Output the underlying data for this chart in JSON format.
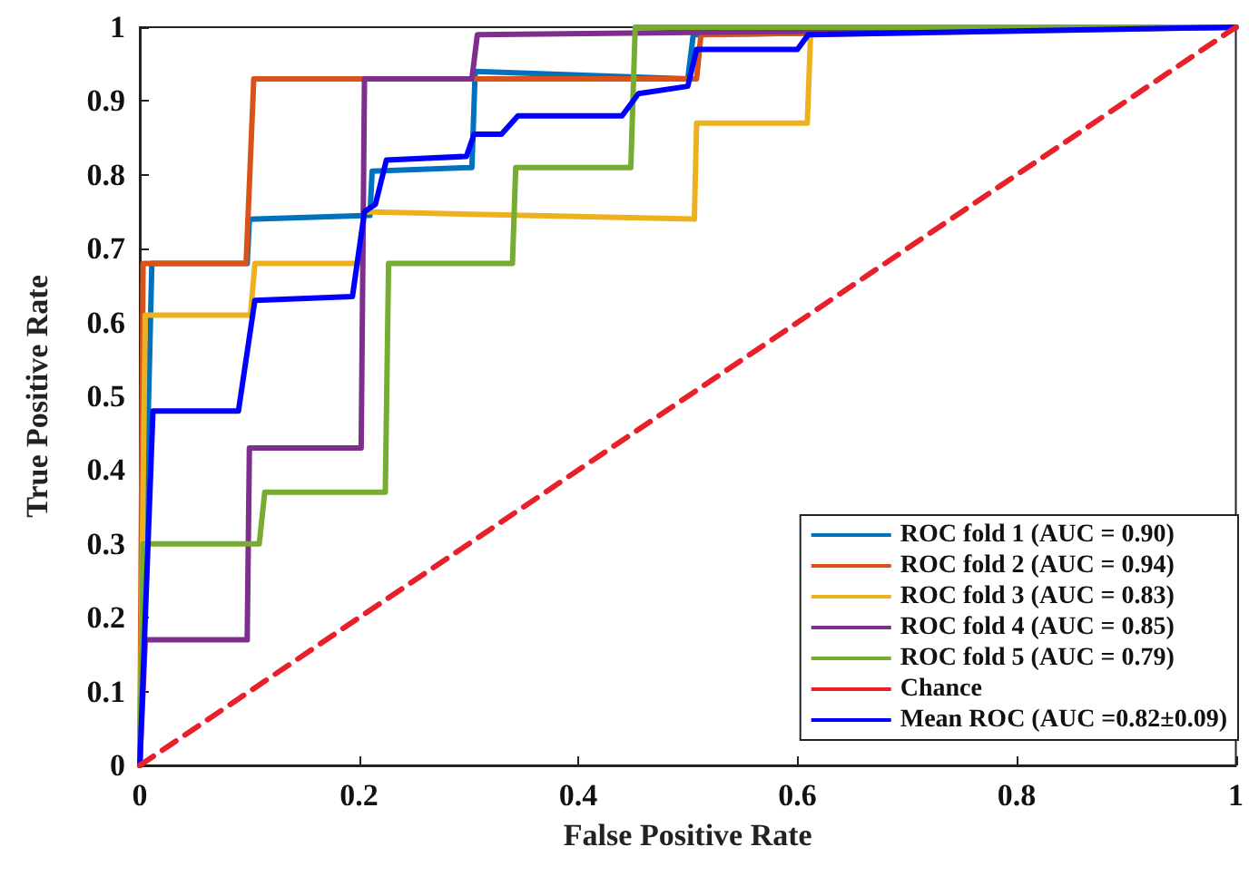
{
  "chart_data": {
    "type": "line",
    "xlabel": "False Positive Rate",
    "ylabel": "True Positive Rate",
    "xlim": [
      0,
      1
    ],
    "ylim": [
      0,
      1
    ],
    "xticks": [
      0,
      0.2,
      0.4,
      0.6,
      0.8,
      1
    ],
    "yticks": [
      0,
      0.1,
      0.2,
      0.3,
      0.4,
      0.5,
      0.6,
      0.7,
      0.8,
      0.9,
      1
    ],
    "grid": false,
    "legend": "bottom right",
    "marker": "none",
    "series": [
      {
        "name": "ROC fold 1 (AUC = 0.90)",
        "color": "#0072bd",
        "x": [
          0,
          0.011,
          0.098,
          0.1,
          0.21,
          0.212,
          0.303,
          0.306,
          0.5,
          0.505,
          1
        ],
        "values": [
          0,
          0.68,
          0.68,
          0.74,
          0.745,
          0.805,
          0.81,
          0.94,
          0.93,
          0.99,
          1
        ]
      },
      {
        "name": "ROC fold 2 (AUC = 0.94)",
        "color": "#d95319",
        "x": [
          0,
          0.003,
          0.097,
          0.104,
          0.508,
          0.512,
          1
        ],
        "values": [
          0,
          0.68,
          0.68,
          0.93,
          0.93,
          0.99,
          1
        ]
      },
      {
        "name": "ROC fold 3 (AUC = 0.83)",
        "color": "#edb120",
        "x": [
          0,
          0.005,
          0.101,
          0.105,
          0.2,
          0.205,
          0.506,
          0.508,
          0.609,
          0.612,
          1
        ],
        "values": [
          0,
          0.61,
          0.61,
          0.68,
          0.68,
          0.75,
          0.74,
          0.87,
          0.87,
          0.99,
          1
        ]
      },
      {
        "name": "ROC fold 4 (AUC = 0.85)",
        "color": "#7e2f8e",
        "x": [
          0,
          0.005,
          0.098,
          0.1,
          0.202,
          0.205,
          0.303,
          0.308,
          1
        ],
        "values": [
          0,
          0.17,
          0.17,
          0.43,
          0.43,
          0.93,
          0.93,
          0.99,
          1
        ]
      },
      {
        "name": "ROC fold 5 (AUC = 0.79)",
        "color": "#77ac30",
        "x": [
          0,
          0.003,
          0.109,
          0.114,
          0.224,
          0.227,
          0.34,
          0.343,
          0.448,
          0.452,
          1
        ],
        "values": [
          0,
          0.3,
          0.3,
          0.37,
          0.37,
          0.68,
          0.68,
          0.81,
          0.81,
          1,
          1
        ]
      },
      {
        "name": "Chance",
        "color": "#e8202a",
        "line_style": "dashed",
        "x": [
          0,
          1
        ],
        "values": [
          0,
          1
        ]
      },
      {
        "name": "Mean ROC (AUC =0.82±0.09)",
        "color": "#0000ff",
        "x": [
          0,
          0.012,
          0.09,
          0.105,
          0.194,
          0.205,
          0.215,
          0.225,
          0.298,
          0.305,
          0.33,
          0.345,
          0.44,
          0.455,
          0.5,
          0.508,
          0.6,
          0.61,
          1
        ],
        "values": [
          0,
          0.48,
          0.48,
          0.63,
          0.635,
          0.75,
          0.76,
          0.82,
          0.825,
          0.855,
          0.855,
          0.88,
          0.88,
          0.91,
          0.92,
          0.97,
          0.97,
          0.99,
          1
        ]
      }
    ]
  }
}
